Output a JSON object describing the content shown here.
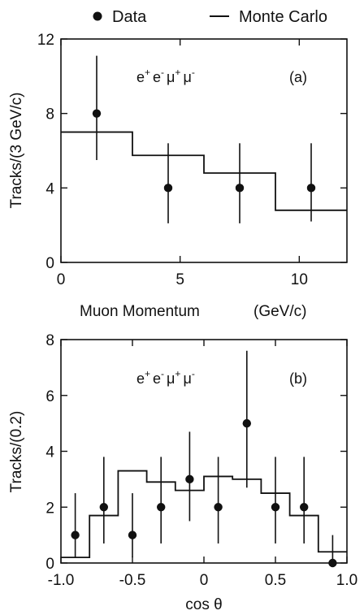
{
  "legend": {
    "data_label": "Data",
    "mc_label": "Monte Carlo",
    "placement": "top"
  },
  "chart_data": [
    {
      "type": "scatter",
      "panel_label": "(a)",
      "annotation_parts": [
        "e",
        "+",
        "e",
        "-",
        "μ",
        "+",
        "μ",
        "-"
      ],
      "xlabel": "Muon Momentum",
      "xunit": "(GeV/c)",
      "ylabel": "Tracks/(3 GeV/c)",
      "xlim": [
        0,
        12
      ],
      "ylim": [
        0,
        12
      ],
      "xticks": [
        0,
        5,
        10
      ],
      "xtick_labels": [
        "0",
        "5",
        "10"
      ],
      "yticks": [
        0,
        4,
        8,
        12
      ],
      "ytick_labels": [
        "0",
        "4",
        "8",
        "12"
      ],
      "grid": false,
      "data_points": [
        {
          "x": 1.5,
          "y": 8,
          "err_low": 2.5,
          "err_high": 3.1
        },
        {
          "x": 4.5,
          "y": 4,
          "err_low": 1.9,
          "err_high": 2.4
        },
        {
          "x": 7.5,
          "y": 4,
          "err_low": 1.9,
          "err_high": 2.4
        },
        {
          "x": 10.5,
          "y": 4,
          "err_low": 1.8,
          "err_high": 2.4
        }
      ],
      "monte_carlo": {
        "bin_edges": [
          0,
          3,
          6,
          9,
          12
        ],
        "values": [
          7.0,
          5.75,
          4.8,
          2.8
        ]
      }
    },
    {
      "type": "scatter",
      "panel_label": "(b)",
      "annotation_parts": [
        "e",
        "+",
        "e",
        "-",
        "μ",
        "+",
        "μ",
        "-"
      ],
      "xlabel": "cos θ",
      "ylabel": "Tracks/(0.2)",
      "xlim": [
        -1.0,
        1.0
      ],
      "ylim": [
        0,
        8
      ],
      "xticks": [
        -1.0,
        -0.5,
        0,
        0.5,
        1.0
      ],
      "xtick_labels": [
        "-1.0",
        "-0.5",
        "0",
        "0.5",
        "1.0"
      ],
      "yticks": [
        0,
        2,
        4,
        6,
        8
      ],
      "ytick_labels": [
        "0",
        "2",
        "4",
        "6",
        "8"
      ],
      "grid": false,
      "data_points": [
        {
          "x": -0.9,
          "y": 1,
          "err_low": 0.8,
          "err_high": 1.5
        },
        {
          "x": -0.7,
          "y": 2,
          "err_low": 1.3,
          "err_high": 1.8
        },
        {
          "x": -0.5,
          "y": 1,
          "err_low": 0.8,
          "err_high": 1.5
        },
        {
          "x": -0.3,
          "y": 2,
          "err_low": 1.3,
          "err_high": 1.8
        },
        {
          "x": -0.1,
          "y": 3,
          "err_low": 1.5,
          "err_high": 1.7
        },
        {
          "x": 0.1,
          "y": 2,
          "err_low": 1.3,
          "err_high": 1.8
        },
        {
          "x": 0.3,
          "y": 5,
          "err_low": 2.3,
          "err_high": 2.6
        },
        {
          "x": 0.5,
          "y": 2,
          "err_low": 1.3,
          "err_high": 1.8
        },
        {
          "x": 0.7,
          "y": 2,
          "err_low": 1.3,
          "err_high": 1.8
        },
        {
          "x": 0.9,
          "y": 0,
          "err_low": 0,
          "err_high": 1.0
        }
      ],
      "monte_carlo": {
        "bin_edges": [
          -1.0,
          -0.8,
          -0.6,
          -0.4,
          -0.2,
          0.0,
          0.2,
          0.4,
          0.6,
          0.8,
          1.0
        ],
        "values": [
          0.2,
          1.7,
          3.3,
          2.9,
          2.6,
          3.1,
          3.0,
          2.5,
          1.7,
          0.4
        ]
      }
    }
  ]
}
